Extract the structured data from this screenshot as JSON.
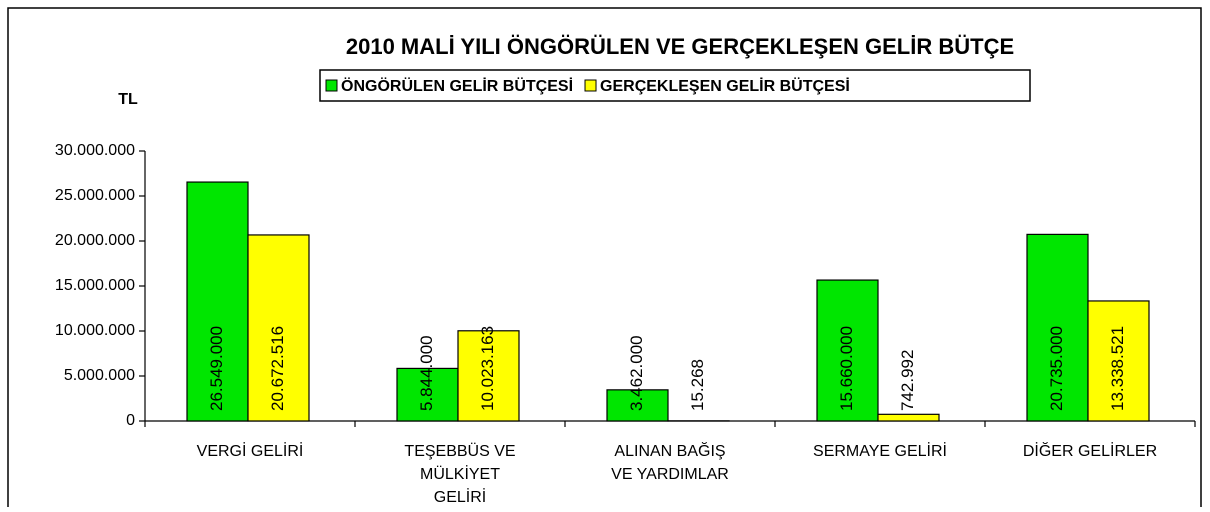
{
  "chart_data": {
    "type": "bar",
    "title": "2010 MALİ YILI ÖNGÖRÜLEN VE GERÇEKLEŞEN GELİR BÜTÇE",
    "y_label": "TL",
    "categories": [
      "VERGİ GELİRİ",
      "TEŞEBBÜS VE MÜLKİYET GELİRİ",
      "ALINAN BAĞIŞ VE YARDIMLAR",
      "SERMAYE GELİRİ",
      "DİĞER GELİRLER"
    ],
    "series": [
      {
        "name": "ÖNGÖRÜLEN GELİR BÜTÇESİ",
        "color": "#00e600",
        "values": [
          26549000,
          5844000,
          3462000,
          15660000,
          20735000
        ],
        "value_labels": [
          "26.549.000",
          "5.844.000",
          "3.462.000",
          "15.660.000",
          "20.735.000"
        ]
      },
      {
        "name": "GERÇEKLEŞEN GELİR BÜTÇESİ",
        "color": "#ffff00",
        "values": [
          20672516,
          10023163,
          15268,
          742992,
          13338521
        ],
        "value_labels": [
          "20.672.516",
          "10.023.163",
          "15.268",
          "742.992",
          "13.338.521"
        ]
      }
    ],
    "ylim": [
      0,
      30000000
    ],
    "yticks": [
      0,
      {
        "value": 5000000,
        "label": "5.000.000"
      },
      {
        "value": 10000000,
        "label": "10.000.000"
      },
      {
        "value": 15000000,
        "label": "15.000.000"
      },
      {
        "value": 20000000,
        "label": "20.000.000"
      },
      {
        "value": 25000000,
        "label": "25.000.000"
      },
      {
        "value": 30000000,
        "label": "30.000.000"
      }
    ],
    "grid": false,
    "legend": "top"
  }
}
